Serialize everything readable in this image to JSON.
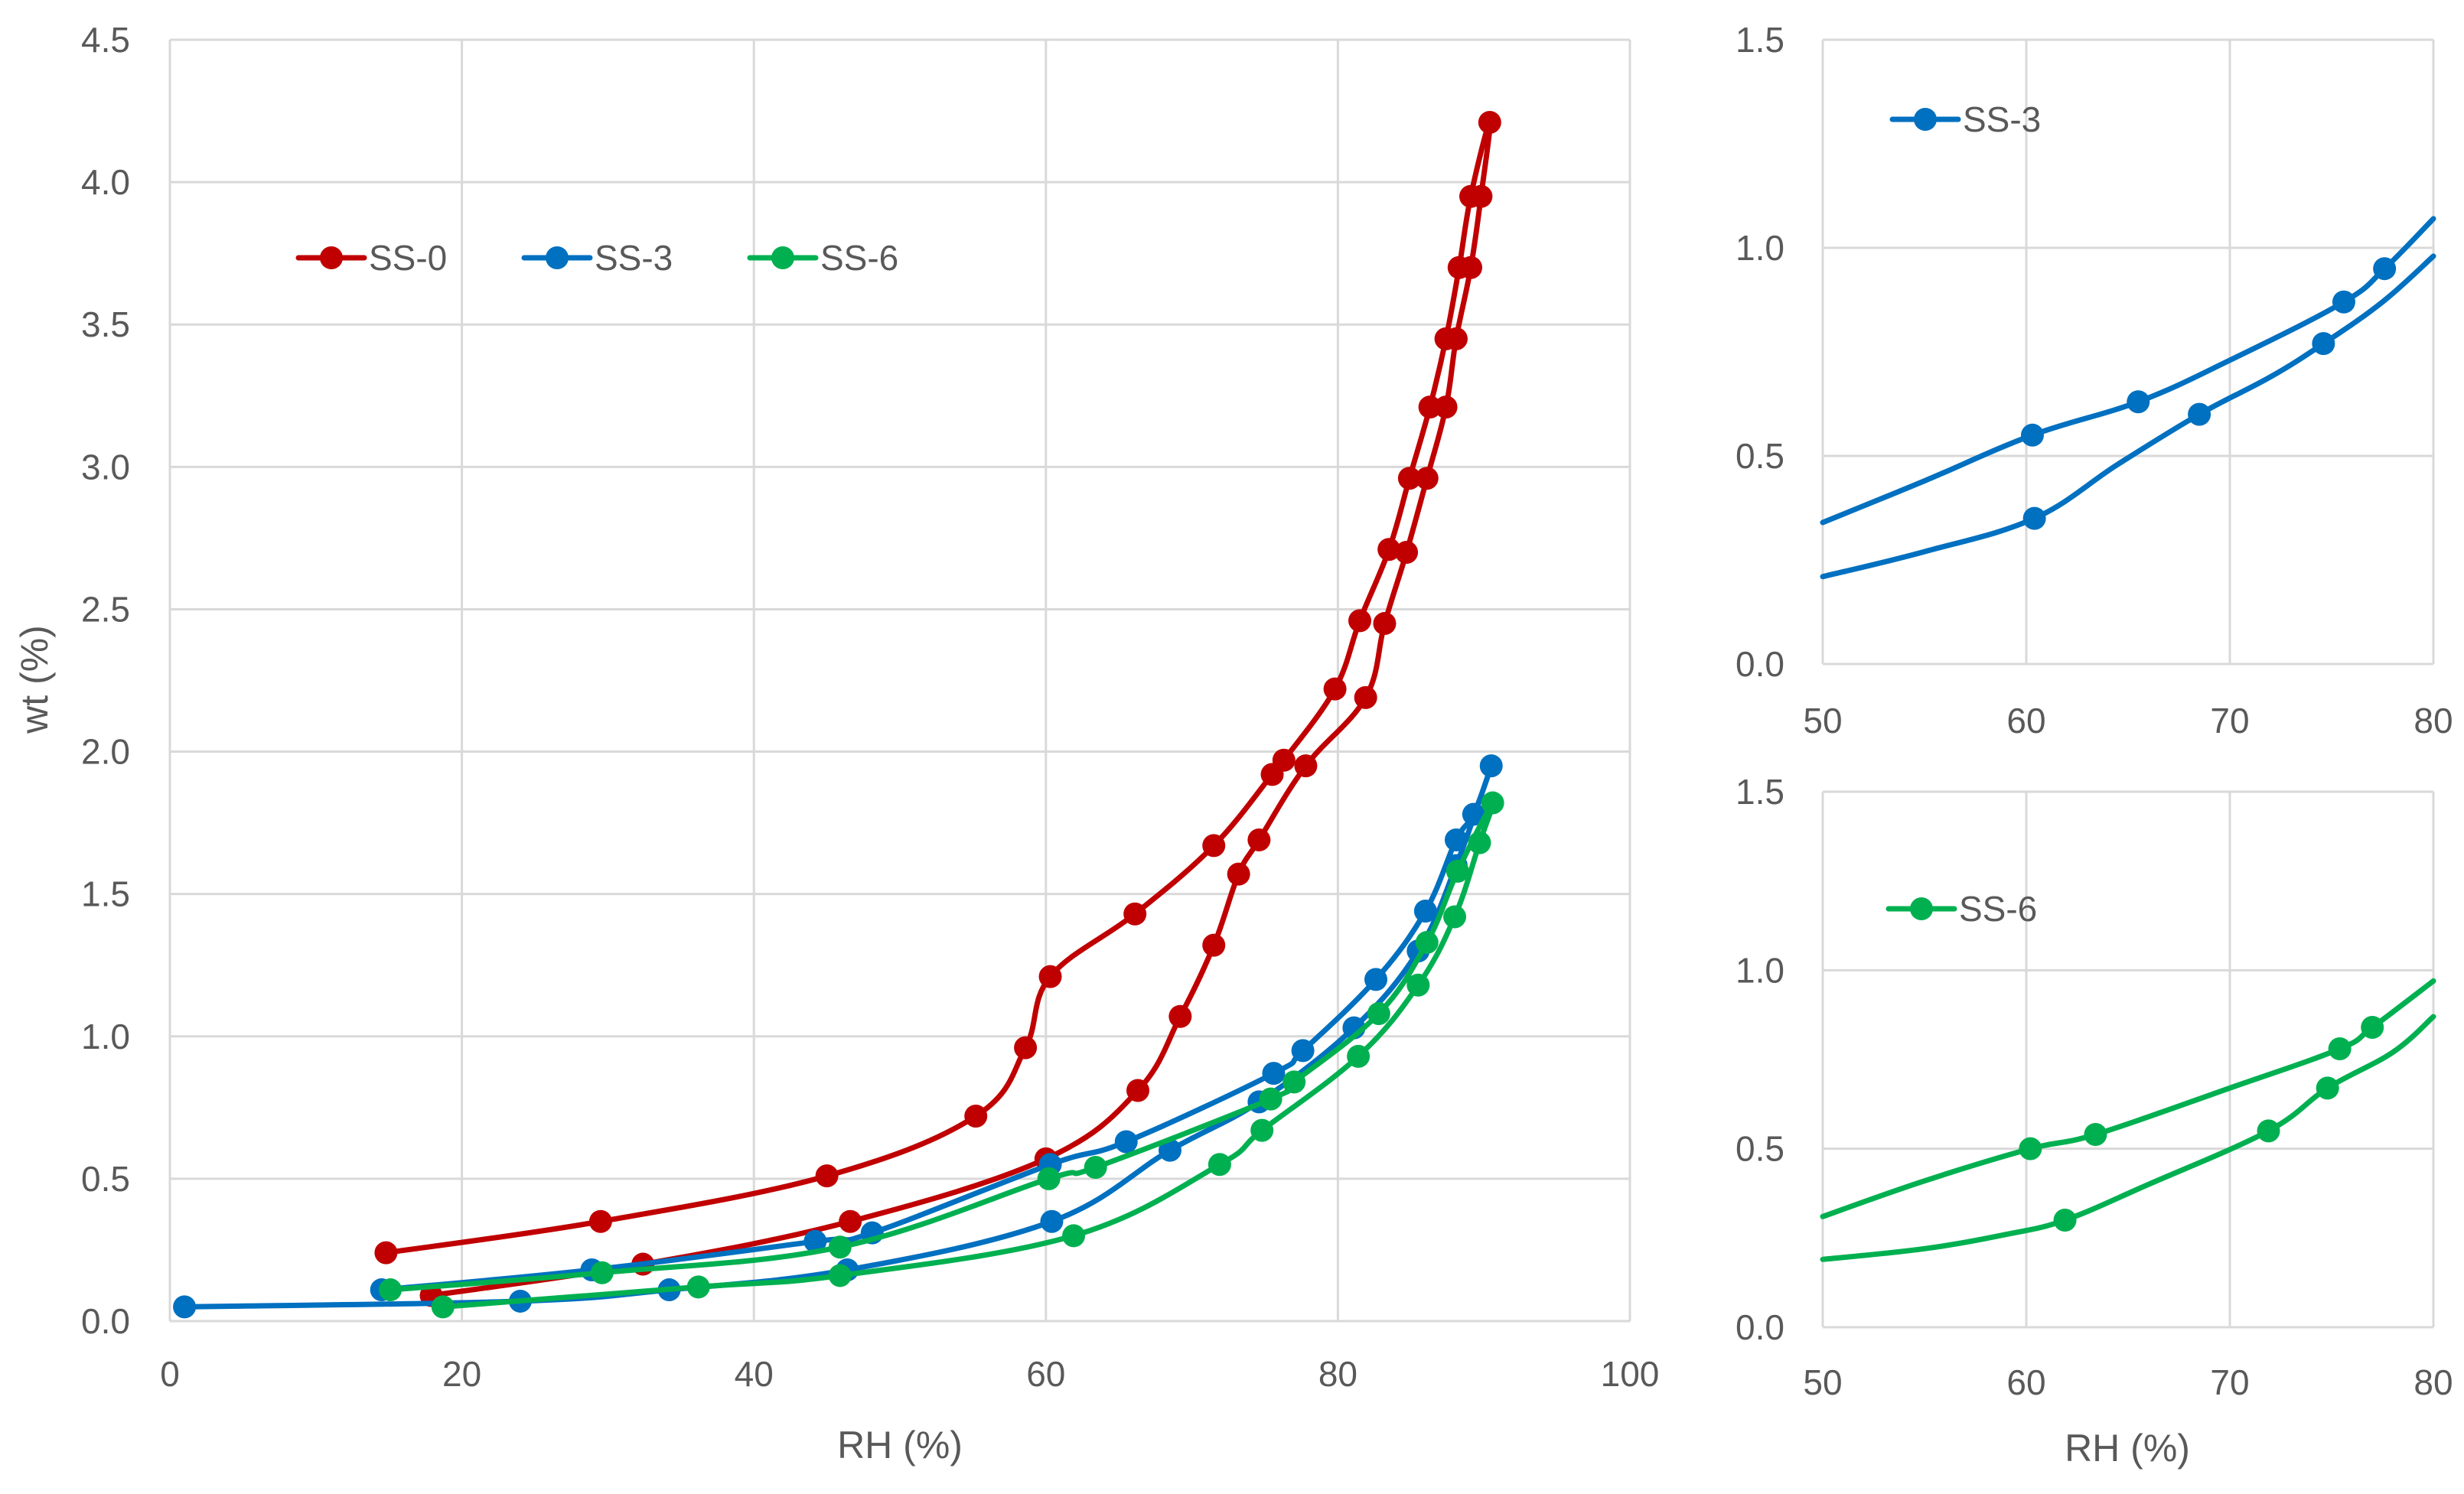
{
  "chart_data": [
    {
      "id": "main",
      "type": "line",
      "title": "",
      "xlabel": "RH (%)",
      "ylabel": "wt (%)",
      "xlim": [
        0,
        100
      ],
      "ylim": [
        0,
        4.5
      ],
      "xticks": [
        0,
        20,
        40,
        60,
        80,
        100
      ],
      "yticks": [
        0,
        0.5,
        1.0,
        1.5,
        2.0,
        2.5,
        3.0,
        3.5,
        4.0,
        4.5
      ],
      "xtick_labels": [
        "0",
        "20",
        "40",
        "60",
        "80",
        "100"
      ],
      "ytick_labels": [
        "0.0",
        "0.5",
        "1.0",
        "1.5",
        "2.0",
        "2.5",
        "3.0",
        "3.5",
        "4.0",
        "4.5"
      ],
      "grid": true,
      "legend_position": "top-left",
      "series": [
        {
          "name": "SS-0",
          "color": "#c00000",
          "points": [
            [
              17.9,
              0.09
            ],
            [
              32.4,
              0.2
            ],
            [
              46.6,
              0.35
            ],
            [
              60.0,
              0.57
            ],
            [
              66.3,
              0.81
            ],
            [
              69.2,
              1.07
            ],
            [
              71.5,
              1.32
            ],
            [
              73.2,
              1.57
            ],
            [
              74.6,
              1.69
            ],
            [
              77.8,
              1.95
            ],
            [
              81.9,
              2.19
            ],
            [
              83.2,
              2.45
            ],
            [
              84.7,
              2.7
            ],
            [
              86.1,
              2.96
            ],
            [
              87.4,
              3.21
            ],
            [
              88.1,
              3.45
            ],
            [
              89.1,
              3.7
            ],
            [
              89.8,
              3.95
            ],
            [
              90.4,
              4.21
            ],
            [
              89.1,
              3.95
            ],
            [
              88.3,
              3.7
            ],
            [
              87.4,
              3.45
            ],
            [
              86.3,
              3.21
            ],
            [
              84.9,
              2.96
            ],
            [
              83.5,
              2.71
            ],
            [
              81.5,
              2.46
            ],
            [
              79.8,
              2.22
            ],
            [
              76.3,
              1.97
            ],
            [
              75.5,
              1.92
            ],
            [
              71.5,
              1.67
            ],
            [
              66.1,
              1.43
            ],
            [
              60.3,
              1.21
            ],
            [
              58.6,
              0.96
            ],
            [
              55.2,
              0.72
            ],
            [
              45.0,
              0.51
            ],
            [
              29.5,
              0.35
            ],
            [
              14.8,
              0.24
            ]
          ]
        },
        {
          "name": "SS-3",
          "color": "#0070c0",
          "points": [
            [
              1.0,
              0.05
            ],
            [
              24.0,
              0.07
            ],
            [
              34.2,
              0.11
            ],
            [
              46.4,
              0.18
            ],
            [
              60.4,
              0.35
            ],
            [
              68.5,
              0.6
            ],
            [
              74.6,
              0.77
            ],
            [
              81.1,
              1.03
            ],
            [
              85.5,
              1.3
            ],
            [
              88.1,
              1.6
            ],
            [
              90.5,
              1.95
            ],
            [
              89.3,
              1.78
            ],
            [
              88.1,
              1.69
            ],
            [
              86.0,
              1.44
            ],
            [
              82.6,
              1.2
            ],
            [
              77.6,
              0.95
            ],
            [
              75.6,
              0.87
            ],
            [
              65.5,
              0.63
            ],
            [
              60.3,
              0.55
            ],
            [
              48.1,
              0.31
            ],
            [
              44.2,
              0.28
            ],
            [
              28.9,
              0.18
            ],
            [
              14.5,
              0.11
            ]
          ]
        },
        {
          "name": "SS-6",
          "color": "#00b050",
          "points": [
            [
              18.7,
              0.05
            ],
            [
              36.2,
              0.12
            ],
            [
              45.9,
              0.16
            ],
            [
              61.9,
              0.3
            ],
            [
              71.9,
              0.55
            ],
            [
              74.8,
              0.67
            ],
            [
              81.4,
              0.93
            ],
            [
              85.5,
              1.18
            ],
            [
              88.0,
              1.42
            ],
            [
              89.7,
              1.68
            ],
            [
              90.6,
              1.82
            ],
            [
              88.2,
              1.58
            ],
            [
              86.1,
              1.33
            ],
            [
              82.8,
              1.08
            ],
            [
              77.0,
              0.84
            ],
            [
              75.4,
              0.78
            ],
            [
              63.4,
              0.54
            ],
            [
              60.2,
              0.5
            ],
            [
              45.9,
              0.26
            ],
            [
              29.6,
              0.17
            ],
            [
              15.1,
              0.11
            ]
          ]
        }
      ]
    },
    {
      "id": "inset-ss3",
      "type": "line",
      "title": "",
      "xlabel": "",
      "ylabel": "",
      "xlim": [
        50,
        80
      ],
      "ylim": [
        0,
        1.5
      ],
      "xtick_labels": [
        "50",
        "60",
        "70",
        "80"
      ],
      "ytick_labels": [
        "0.0",
        "0.5",
        "1.0",
        "1.5"
      ],
      "grid": true,
      "legend_position": "top-left",
      "series": [
        {
          "name": "SS-3",
          "color": "#0070c0",
          "curves": [
            [
              [
                50,
                0.34
              ],
              [
                55,
                0.44
              ],
              [
                60.3,
                0.55
              ],
              [
                65.5,
                0.63
              ],
              [
                70,
                0.73
              ],
              [
                75.6,
                0.87
              ],
              [
                77.6,
                0.95
              ],
              [
                80,
                1.07
              ]
            ],
            [
              [
                50,
                0.21
              ],
              [
                55,
                0.27
              ],
              [
                60.4,
                0.35
              ],
              [
                64.5,
                0.48
              ],
              [
                68.5,
                0.6
              ],
              [
                72,
                0.69
              ],
              [
                74.6,
                0.77
              ],
              [
                77.5,
                0.87
              ],
              [
                80,
                0.98
              ]
            ]
          ],
          "markers": [
            [
              60.3,
              0.55
            ],
            [
              65.5,
              0.63
            ],
            [
              75.6,
              0.87
            ],
            [
              77.6,
              0.95
            ],
            [
              60.4,
              0.35
            ],
            [
              68.5,
              0.6
            ],
            [
              74.6,
              0.77
            ]
          ]
        }
      ]
    },
    {
      "id": "inset-ss6",
      "type": "line",
      "title": "",
      "xlabel": "RH (%)",
      "ylabel": "",
      "xlim": [
        50,
        80
      ],
      "ylim": [
        0,
        1.5
      ],
      "xtick_labels": [
        "50",
        "60",
        "70",
        "80"
      ],
      "ytick_labels": [
        "0.0",
        "0.5",
        "1.0",
        "1.5"
      ],
      "grid": true,
      "legend_position": "top-left",
      "series": [
        {
          "name": "SS-6",
          "color": "#00b050",
          "curves": [
            [
              [
                50,
                0.31
              ],
              [
                55,
                0.41
              ],
              [
                60.2,
                0.5
              ],
              [
                63.4,
                0.54
              ],
              [
                70,
                0.67
              ],
              [
                75.4,
                0.78
              ],
              [
                77.0,
                0.84
              ],
              [
                80,
                0.97
              ]
            ],
            [
              [
                50,
                0.19
              ],
              [
                55,
                0.22
              ],
              [
                59,
                0.26
              ],
              [
                61.9,
                0.3
              ],
              [
                66,
                0.4
              ],
              [
                71.9,
                0.55
              ],
              [
                74.8,
                0.67
              ],
              [
                78,
                0.77
              ],
              [
                80,
                0.87
              ]
            ]
          ],
          "markers": [
            [
              60.2,
              0.5
            ],
            [
              63.4,
              0.54
            ],
            [
              75.4,
              0.78
            ],
            [
              77.0,
              0.84
            ],
            [
              61.9,
              0.3
            ],
            [
              71.9,
              0.55
            ],
            [
              74.8,
              0.67
            ]
          ]
        }
      ]
    }
  ]
}
